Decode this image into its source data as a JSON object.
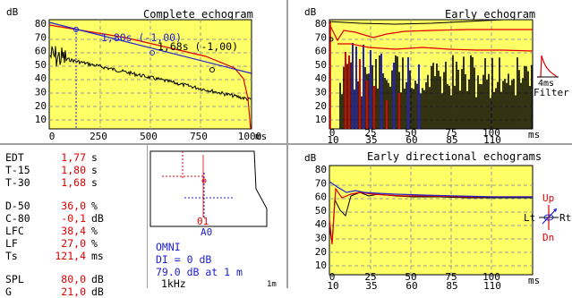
{
  "complete_echogram": {
    "title": "Complete echogram",
    "y_unit": "dB",
    "x_unit": "ms",
    "y_ticks": [
      "80",
      "70",
      "60",
      "50",
      "40",
      "30",
      "20",
      "10"
    ],
    "x_ticks": [
      "0",
      "250",
      "500",
      "750",
      "1000"
    ],
    "annotations": [
      "1,80s (-1,00)",
      "1,68s (-1,00)"
    ]
  },
  "early_echogram": {
    "title": "Early echogram",
    "y_unit": "dB",
    "x_unit": "ms",
    "y_ticks": [
      "80",
      "70",
      "60",
      "50",
      "40",
      "30",
      "20",
      "10"
    ],
    "x_ticks_top": [
      "0",
      "25",
      "50",
      "75",
      "100"
    ],
    "x_ticks_bottom": [
      "10",
      "35",
      "60",
      "85",
      "110"
    ],
    "filter_label_1": "4ms",
    "filter_label_2": "Filter"
  },
  "parameters": [
    {
      "name": "EDT",
      "value": "1,77",
      "unit": "s"
    },
    {
      "name": "T-15",
      "value": "1,80",
      "unit": "s"
    },
    {
      "name": "T-30",
      "value": "1,68",
      "unit": "s"
    },
    {
      "name": "D-50",
      "value": "36,0",
      "unit": "%"
    },
    {
      "name": "C-80",
      "value": "-0,1",
      "unit": "dB"
    },
    {
      "name": "LFC",
      "value": "38,4",
      "unit": "%"
    },
    {
      "name": "LF",
      "value": "27,0",
      "unit": "%"
    },
    {
      "name": "Ts",
      "value": "121,4",
      "unit": "ms"
    },
    {
      "name": "SPL",
      "value": "80,0",
      "unit": "dB"
    },
    {
      "name": "G",
      "value": "21,0",
      "unit": "dB"
    }
  ],
  "floorplan": {
    "receiver_label": "01",
    "source_label": "A0",
    "source_type": "OMNI",
    "di": "DI = 0 dB",
    "level": "79.0 dB at 1 m",
    "band": "1kHz",
    "scale": "1m"
  },
  "directional": {
    "title": "Early directional echograms",
    "y_unit": "dB",
    "x_unit": "ms",
    "y_ticks": [
      "80",
      "70",
      "60",
      "50",
      "40",
      "30",
      "20",
      "10"
    ],
    "x_ticks_top": [
      "0",
      "25",
      "50",
      "75",
      "100"
    ],
    "x_ticks_bottom": [
      "10",
      "35",
      "60",
      "85",
      "110"
    ],
    "compass_up": "Up",
    "compass_down": "Dn",
    "compass_left": "Lt",
    "compass_right": "Rt"
  },
  "colors": {
    "plot_bg": "#ffff66",
    "red": "#e00000",
    "blue": "#2020d0",
    "grid": "#9a9a9a"
  }
}
